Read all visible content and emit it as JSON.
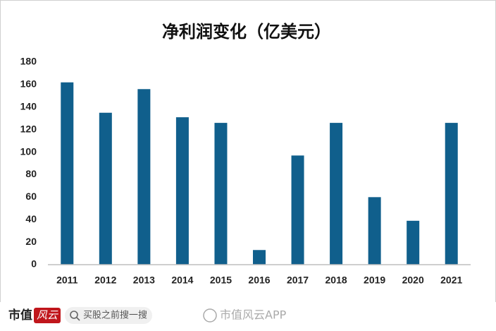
{
  "chart_data": {
    "type": "bar",
    "title": "净利润变化（亿美元）",
    "categories": [
      "2011",
      "2012",
      "2013",
      "2014",
      "2015",
      "2016",
      "2017",
      "2018",
      "2019",
      "2020",
      "2021"
    ],
    "values": [
      162,
      135,
      156,
      131,
      126,
      13,
      97,
      126,
      60,
      39,
      126
    ],
    "color": "#105f8c",
    "ylim": [
      0,
      180
    ],
    "yticks": [
      0,
      20,
      40,
      60,
      80,
      100,
      120,
      140,
      160,
      180
    ],
    "grid": false
  },
  "footer": {
    "logo": "市值",
    "logo_mark": "风云",
    "search": "买股之前搜一搜",
    "watermark": "市值风云APP"
  }
}
